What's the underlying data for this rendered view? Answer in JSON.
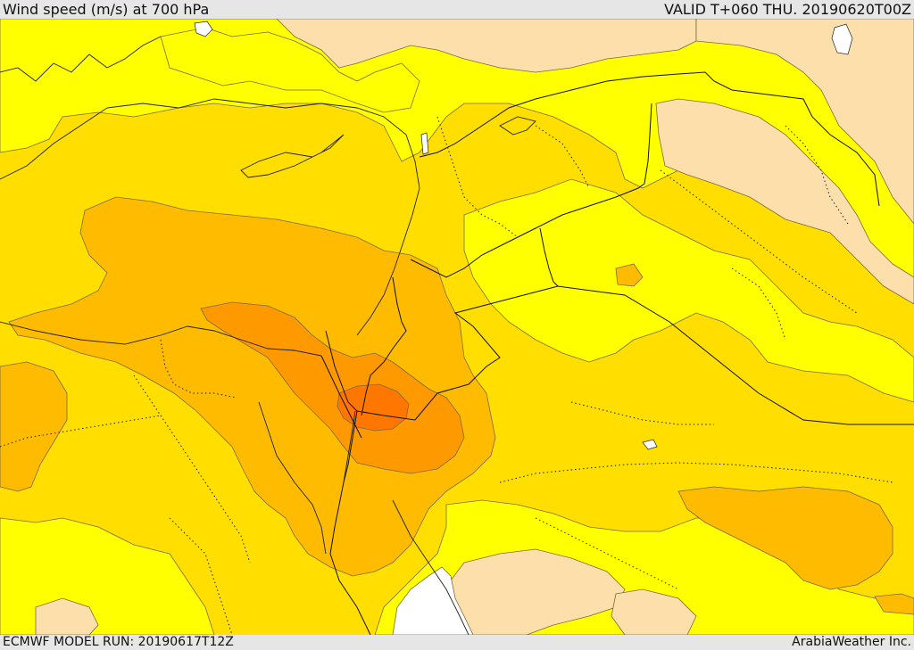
{
  "header": {
    "title": "Wind speed (m/s) at 700 hPa",
    "valid": "VALID T+060 THU. 20190620T00Z"
  },
  "footer": {
    "model_run": "ECMWF MODEL RUN: 20190617T12Z",
    "credit": "ArabiaWeather Inc."
  },
  "map": {
    "field": "wind speed at 700 hPa",
    "colors": {
      "lowest": "#fddfac",
      "low": "#ffff00",
      "moderate": "#ffde00",
      "high": "#ffbb00",
      "higher": "#ff9900",
      "highest": "#ff7700",
      "sea_unshaded": "#ffffff"
    }
  }
}
